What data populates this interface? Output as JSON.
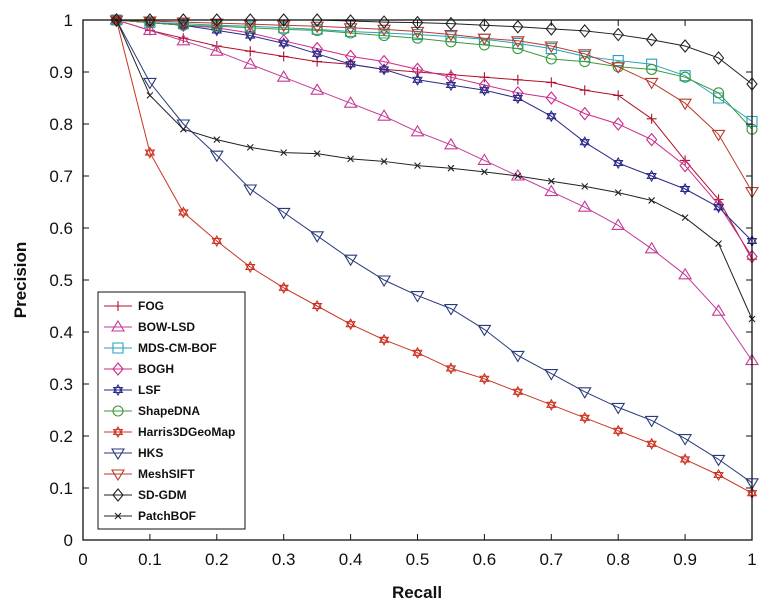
{
  "chart_data": {
    "type": "line",
    "title": "",
    "xlabel": "Recall",
    "ylabel": "Precision",
    "xlim": [
      0,
      1
    ],
    "ylim": [
      0,
      1
    ],
    "xticks": [
      "0",
      "0.1",
      "0.2",
      "0.3",
      "0.4",
      "0.5",
      "0.6",
      "0.7",
      "0.8",
      "0.9",
      "1"
    ],
    "yticks": [
      "0",
      "0.1",
      "0.2",
      "0.3",
      "0.4",
      "0.5",
      "0.6",
      "0.7",
      "0.8",
      "0.9",
      "1"
    ],
    "grid": false,
    "legend_position": "bottom-left",
    "x": [
      0.05,
      0.1,
      0.15,
      0.2,
      0.25,
      0.3,
      0.35,
      0.4,
      0.45,
      0.5,
      0.55,
      0.6,
      0.65,
      0.7,
      0.75,
      0.8,
      0.85,
      0.9,
      0.95,
      1.0
    ],
    "series": [
      {
        "name": "FOG",
        "marker": "plus",
        "color": "#b0102a",
        "values": [
          1,
          0.98,
          0.965,
          0.95,
          0.94,
          0.93,
          0.92,
          0.915,
          0.905,
          0.9,
          0.895,
          0.89,
          0.885,
          0.88,
          0.865,
          0.855,
          0.81,
          0.73,
          0.655,
          0.54
        ]
      },
      {
        "name": "BOW-LSD",
        "marker": "triangle-up",
        "color": "#c43a96",
        "values": [
          1,
          0.98,
          0.96,
          0.94,
          0.915,
          0.89,
          0.865,
          0.84,
          0.815,
          0.785,
          0.76,
          0.73,
          0.7,
          0.67,
          0.64,
          0.605,
          0.56,
          0.51,
          0.44,
          0.345
        ]
      },
      {
        "name": "MDS-CM-BOF",
        "marker": "square",
        "color": "#2a9fbf",
        "values": [
          1,
          0.995,
          0.993,
          0.99,
          0.988,
          0.985,
          0.982,
          0.978,
          0.975,
          0.972,
          0.968,
          0.963,
          0.955,
          0.945,
          0.93,
          0.922,
          0.915,
          0.893,
          0.85,
          0.805
        ]
      },
      {
        "name": "BOGH",
        "marker": "diamond",
        "color": "#cc2a8a",
        "values": [
          1,
          0.995,
          0.99,
          0.985,
          0.975,
          0.96,
          0.945,
          0.93,
          0.92,
          0.905,
          0.89,
          0.875,
          0.86,
          0.85,
          0.82,
          0.8,
          0.77,
          0.72,
          0.645,
          0.545
        ]
      },
      {
        "name": "LSF",
        "marker": "hexagram",
        "color": "#2a2a8a",
        "values": [
          1,
          0.995,
          0.99,
          0.98,
          0.97,
          0.955,
          0.935,
          0.915,
          0.905,
          0.885,
          0.875,
          0.865,
          0.85,
          0.815,
          0.765,
          0.725,
          0.7,
          0.675,
          0.64,
          0.575
        ]
      },
      {
        "name": "ShapeDNA",
        "marker": "circle",
        "color": "#3a9a3a",
        "values": [
          1,
          0.995,
          0.99,
          0.988,
          0.985,
          0.982,
          0.98,
          0.975,
          0.97,
          0.965,
          0.958,
          0.952,
          0.945,
          0.925,
          0.92,
          0.91,
          0.905,
          0.89,
          0.86,
          0.79
        ]
      },
      {
        "name": "Harris3DGeoMap",
        "marker": "hexagram",
        "color": "#cc3322",
        "values": [
          1,
          0.745,
          0.63,
          0.575,
          0.525,
          0.485,
          0.45,
          0.415,
          0.385,
          0.36,
          0.33,
          0.31,
          0.285,
          0.26,
          0.235,
          0.21,
          0.185,
          0.155,
          0.125,
          0.09
        ]
      },
      {
        "name": "HKS",
        "marker": "triangle-down",
        "color": "#2a3a7a",
        "values": [
          1,
          0.88,
          0.8,
          0.74,
          0.675,
          0.63,
          0.585,
          0.54,
          0.5,
          0.47,
          0.445,
          0.405,
          0.355,
          0.32,
          0.285,
          0.255,
          0.23,
          0.195,
          0.155,
          0.11
        ]
      },
      {
        "name": "MeshSIFT",
        "marker": "triangle-down",
        "color": "#b83a2a",
        "values": [
          1,
          0.998,
          0.996,
          0.994,
          0.992,
          0.99,
          0.988,
          0.985,
          0.982,
          0.978,
          0.972,
          0.965,
          0.96,
          0.95,
          0.935,
          0.91,
          0.88,
          0.84,
          0.78,
          0.67
        ]
      },
      {
        "name": "SD-GDM",
        "marker": "diamond",
        "color": "#222222",
        "values": [
          1,
          1,
          1,
          1,
          1,
          1,
          1,
          0.998,
          0.996,
          0.995,
          0.993,
          0.99,
          0.987,
          0.983,
          0.979,
          0.972,
          0.962,
          0.95,
          0.927,
          0.877
        ]
      },
      {
        "name": "PatchBOF",
        "marker": "x",
        "color": "#222222",
        "values": [
          1,
          0.855,
          0.79,
          0.77,
          0.755,
          0.745,
          0.743,
          0.733,
          0.728,
          0.72,
          0.715,
          0.708,
          0.7,
          0.69,
          0.68,
          0.668,
          0.653,
          0.62,
          0.57,
          0.425
        ]
      }
    ]
  }
}
